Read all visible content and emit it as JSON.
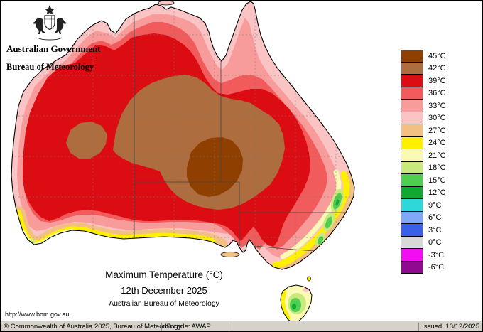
{
  "header": {
    "government": "Australian Government",
    "bureau": "Bureau of Meteorology"
  },
  "map": {
    "title": "Maximum Temperature (°C)",
    "date": "12th December 2025",
    "attribution": "Australian Bureau of Meteorology",
    "url": "http://www.bom.gov.au"
  },
  "legend": [
    {
      "label": "45°C",
      "color": "#8F4000"
    },
    {
      "label": "42°C",
      "color": "#AD6D3E"
    },
    {
      "label": "39°C",
      "color": "#DC0D12"
    },
    {
      "label": "36°C",
      "color": "#F25B5B"
    },
    {
      "label": "33°C",
      "color": "#F89B9B"
    },
    {
      "label": "30°C",
      "color": "#FBC4C4"
    },
    {
      "label": "27°C",
      "color": "#F2C083"
    },
    {
      "label": "24°C",
      "color": "#FFF000"
    },
    {
      "label": "21°C",
      "color": "#FAFAB4"
    },
    {
      "label": "18°C",
      "color": "#C9E87E"
    },
    {
      "label": "15°C",
      "color": "#4FCE4F"
    },
    {
      "label": "12°C",
      "color": "#0FA830"
    },
    {
      "label": "9°C",
      "color": "#2FD8D8"
    },
    {
      "label": "6°C",
      "color": "#7FA8F5"
    },
    {
      "label": "3°C",
      "color": "#3A5FE8"
    },
    {
      "label": "0°C",
      "color": "#D8D8D8"
    },
    {
      "label": "-3°C",
      "color": "#F20DF2"
    },
    {
      "label": "-6°C",
      "color": "#900990"
    }
  ],
  "footer": {
    "copyright": "© Commonwealth of Australia 2025, Bureau of Meteorology",
    "id_code": "ID code: AWAP",
    "issued": "Issued: 13/12/2025"
  }
}
